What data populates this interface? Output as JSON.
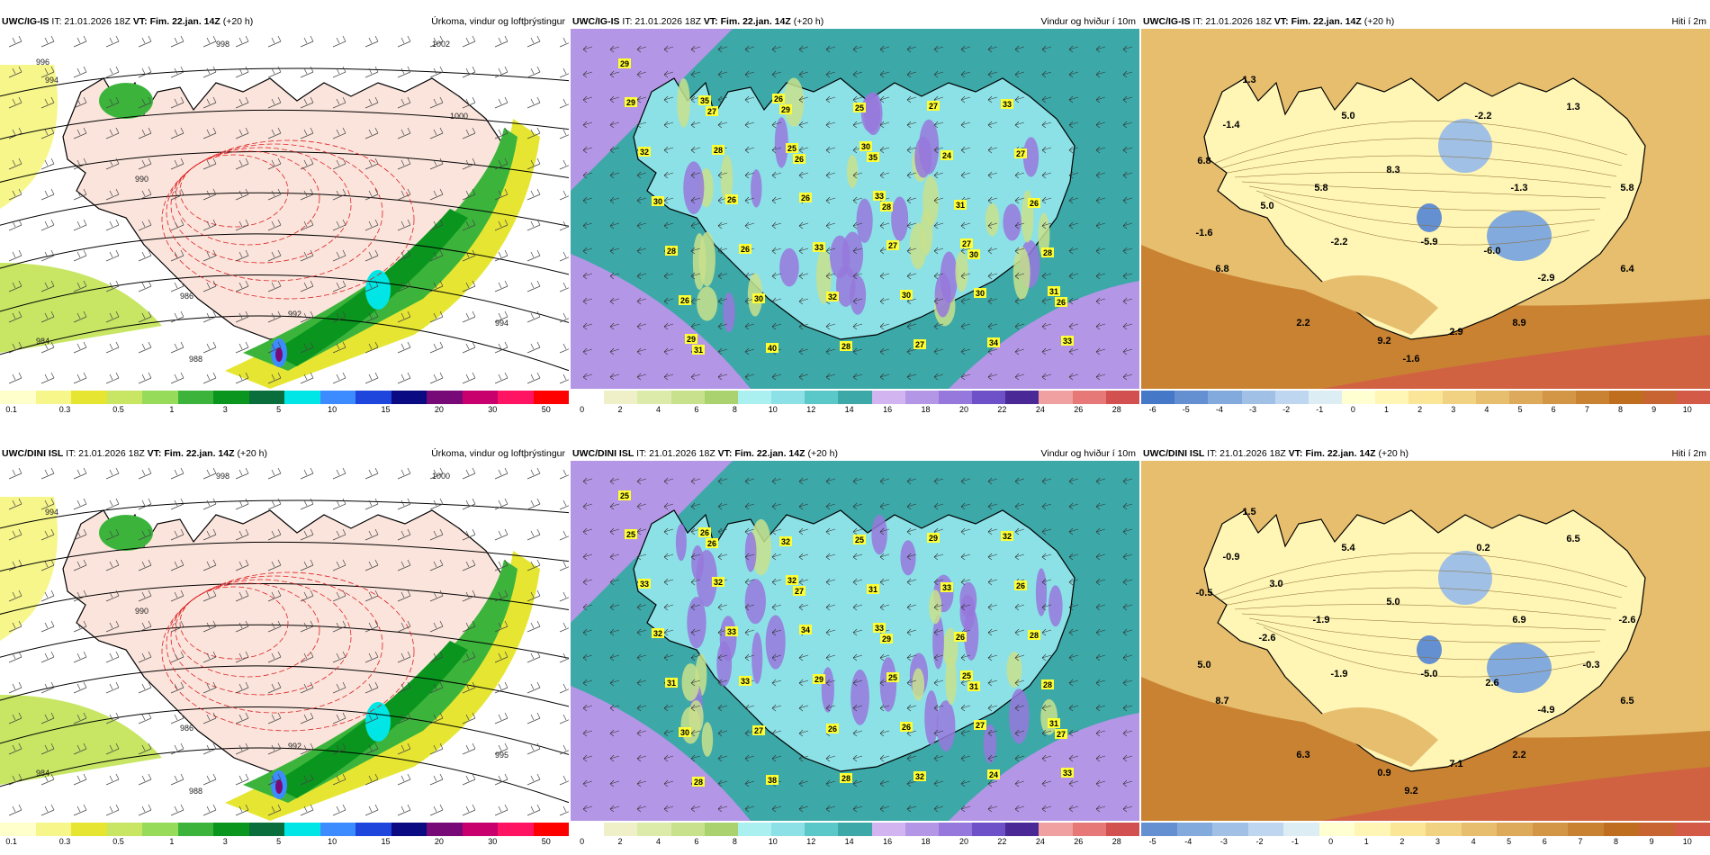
{
  "panels": [
    {
      "model": "UWC/IG-IS",
      "prefix": "IT: 21.01.2026 18Z ",
      "vt_label": "VT:",
      "vt": "Fim. 22.jan. 14Z",
      "lead": "(+20 h)",
      "title": "Úrkoma, vindur og loftþrýstingur",
      "type": "precip",
      "ticks": [
        "0.1",
        "0.3",
        "0.5",
        "1",
        "3",
        "5",
        "10",
        "15",
        "20",
        "30",
        "50"
      ],
      "colors": [
        "#ffffcc",
        "#f6f68a",
        "#e6e632",
        "#c8e664",
        "#96dc5a",
        "#3cb43c",
        "#0a961e",
        "#0a6e3c",
        "#00e6e6",
        "#3c8cff",
        "#1e46dc",
        "#0a0a82",
        "#780a78",
        "#c8006e",
        "#ff1464",
        "#ff0000"
      ],
      "pressure_labels": [
        "998",
        "994",
        "990",
        "986",
        "984",
        "988",
        "992",
        "994",
        "1002",
        "1000",
        "996"
      ],
      "badges": []
    },
    {
      "model": "UWC/IG-IS",
      "prefix": "IT: 21.01.2026 18Z ",
      "vt_label": "VT:",
      "vt": "Fim. 22.jan. 14Z",
      "lead": "(+20 h)",
      "title": "Vindur og hviður í 10m",
      "type": "wind",
      "ticks": [
        "0",
        "2",
        "4",
        "6",
        "8",
        "10",
        "12",
        "14",
        "16",
        "18",
        "20",
        "22",
        "24",
        "26",
        "28"
      ],
      "colors": [
        "#ffffff",
        "#f0f0c8",
        "#dcebaa",
        "#c8e18c",
        "#aad26e",
        "#aaf0f0",
        "#8ce1e6",
        "#5ac8c8",
        "#3ca8a8",
        "#d2b4f0",
        "#b496e6",
        "#9678dc",
        "#6e50c8",
        "#4a2896",
        "#f0a0a0",
        "#e67878",
        "#d25050"
      ],
      "badges": [
        "29",
        "27",
        "26",
        "28",
        "30",
        "26",
        "31",
        "29",
        "35",
        "31",
        "28",
        "26",
        "40",
        "25",
        "24",
        "26",
        "28",
        "30",
        "28",
        "27",
        "27",
        "30",
        "26",
        "32",
        "27",
        "33",
        "32",
        "26",
        "33",
        "30",
        "34",
        "29",
        "28",
        "26",
        "27",
        "30",
        "33",
        "35",
        "25",
        "33",
        "27",
        "31",
        "29",
        "26",
        "30"
      ]
    },
    {
      "model": "UWC/IG-IS",
      "prefix": "IT: 21.01.2026 18Z ",
      "vt_label": "VT:",
      "vt": "Fim. 22.jan. 14Z",
      "lead": "(+20 h)",
      "title": "Hiti í 2m",
      "type": "temp",
      "ticks": [
        "-6",
        "-5",
        "-4",
        "-3",
        "-2",
        "-1",
        "0",
        "1",
        "2",
        "3",
        "4",
        "5",
        "6",
        "7",
        "8",
        "9",
        "10"
      ],
      "colors": [
        "#4678c8",
        "#6490d2",
        "#82aadc",
        "#a0c0e6",
        "#bed6f0",
        "#dceef4",
        "#ffffd2",
        "#fff5b4",
        "#fae696",
        "#f0d282",
        "#e6be6e",
        "#dcaa5a",
        "#d29646",
        "#c88232",
        "#be6e1e",
        "#c86432",
        "#d25a46"
      ],
      "temps": [
        "1.3",
        "5.0",
        "-2.2",
        "1.3",
        "-1.4",
        "6.8",
        "5.8",
        "8.3",
        "-1.3",
        "5.8",
        "5.0",
        "-1.6",
        "-2.2",
        "-5.9",
        "-6.0",
        "6.4",
        "6.8",
        "-2.9",
        "2.2",
        "9.2",
        "2.9",
        "8.9",
        "-1.6"
      ]
    },
    {
      "model": "UWC/DINI ISL",
      "prefix": "IT: 21.01.2026 18Z ",
      "vt_label": "VT:",
      "vt": "Fim. 22.jan. 14Z",
      "lead": "(+20 h)",
      "title": "Úrkoma, vindur og loftþrýstingur",
      "type": "precip",
      "ticks": [
        "0.1",
        "0.3",
        "0.5",
        "1",
        "3",
        "5",
        "10",
        "15",
        "20",
        "30",
        "50"
      ],
      "colors": [
        "#ffffcc",
        "#f6f68a",
        "#e6e632",
        "#c8e664",
        "#96dc5a",
        "#3cb43c",
        "#0a961e",
        "#0a6e3c",
        "#00e6e6",
        "#3c8cff",
        "#1e46dc",
        "#0a0a82",
        "#780a78",
        "#c8006e",
        "#ff1464",
        "#ff0000"
      ],
      "pressure_labels": [
        "998",
        "994",
        "990",
        "986",
        "984",
        "988",
        "992",
        "995",
        "1000"
      ],
      "badges": []
    },
    {
      "model": "UWC/DINI ISL",
      "prefix": "IT: 21.01.2026 18Z ",
      "vt_label": "VT:",
      "vt": "Fim. 22.jan. 14Z",
      "lead": "(+20 h)",
      "title": "Vindur og hviður í 10m",
      "type": "wind",
      "ticks": [
        "0",
        "2",
        "4",
        "6",
        "8",
        "10",
        "12",
        "14",
        "16",
        "18",
        "20",
        "22",
        "24",
        "26",
        "28"
      ],
      "colors": [
        "#ffffff",
        "#f0f0c8",
        "#dcebaa",
        "#c8e18c",
        "#aad26e",
        "#aaf0f0",
        "#8ce1e6",
        "#5ac8c8",
        "#3ca8a8",
        "#d2b4f0",
        "#b496e6",
        "#9678dc",
        "#6e50c8",
        "#4a2896",
        "#f0a0a0",
        "#e67878",
        "#d25050"
      ],
      "badges": [
        "25",
        "26",
        "27",
        "29",
        "31",
        "27",
        "28",
        "32",
        "31",
        "26",
        "28",
        "30",
        "38",
        "25",
        "33",
        "28",
        "31",
        "27",
        "28",
        "29",
        "26",
        "32",
        "33",
        "26",
        "32",
        "32",
        "33",
        "33",
        "29",
        "26",
        "24",
        "25",
        "32",
        "34",
        "25",
        "27",
        "33",
        "26",
        "32",
        "33",
        "25",
        "31"
      ]
    },
    {
      "model": "UWC/DINI ISL",
      "prefix": "IT: 21.01.2026 18Z ",
      "vt_label": "VT:",
      "vt": "Fim. 22.jan. 14Z",
      "lead": "(+20 h)",
      "title": "Hiti í 2m",
      "type": "temp",
      "ticks": [
        "-5",
        "-4",
        "-3",
        "-2",
        "-1",
        "0",
        "1",
        "2",
        "3",
        "4",
        "5",
        "6",
        "7",
        "8",
        "9",
        "10"
      ],
      "colors": [
        "#6490d2",
        "#82aadc",
        "#a0c0e6",
        "#bed6f0",
        "#dceef4",
        "#ffffd2",
        "#fff5b4",
        "#fae696",
        "#f0d282",
        "#e6be6e",
        "#dcaa5a",
        "#d29646",
        "#c88232",
        "#be6e1e",
        "#c86432",
        "#d25a46"
      ],
      "temps": [
        "1.5",
        "5.4",
        "0.2",
        "6.5",
        "-0.9",
        "-0.5",
        "-1.9",
        "5.0",
        "6.9",
        "-2.6",
        "-2.6",
        "5.0",
        "-1.9",
        "-5.0",
        "2.6",
        "6.5",
        "8.7",
        "-4.9",
        "6.3",
        "0.9",
        "7.1",
        "2.2",
        "9.2",
        "3.0",
        "-0.3"
      ]
    }
  ]
}
